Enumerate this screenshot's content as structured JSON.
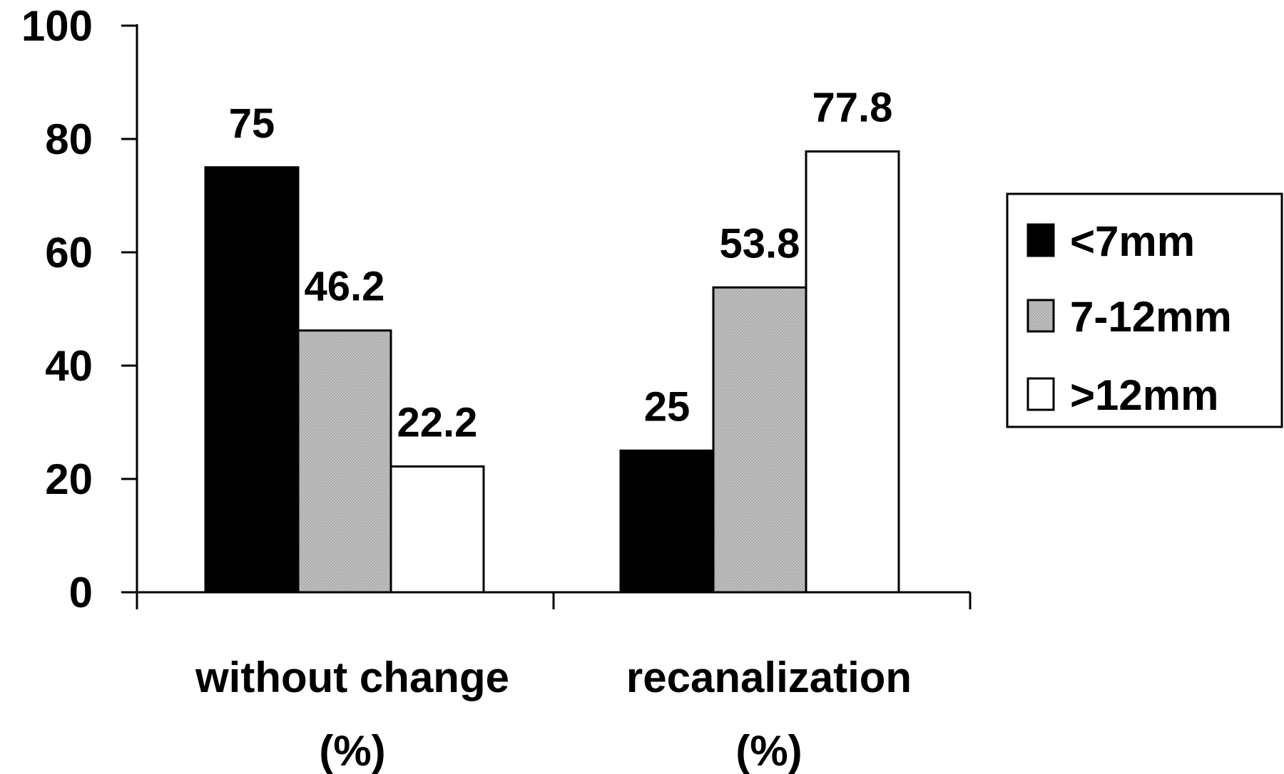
{
  "chart_data": {
    "type": "bar",
    "categories": [
      [
        "without change",
        "(%)"
      ],
      [
        "recanalization",
        "(%)"
      ]
    ],
    "series": [
      {
        "name": "<7mm",
        "values": [
          75,
          25
        ],
        "color": "#000000",
        "fill": "solid"
      },
      {
        "name": "7-12mm",
        "values": [
          46.2,
          53.8
        ],
        "color": "#b4b4b4",
        "fill": "stippled-gray"
      },
      {
        "name": ">12mm",
        "values": [
          22.2,
          77.8
        ],
        "color": "#ffffff",
        "fill": "white"
      }
    ],
    "data_labels": [
      [
        "75",
        "25"
      ],
      [
        "46.2",
        "53.8"
      ],
      [
        "22.2",
        "77.8"
      ]
    ],
    "y_ticks": [
      "0",
      "20",
      "40",
      "60",
      "80",
      "100"
    ],
    "ylim": [
      0,
      100
    ],
    "title": "",
    "xlabel": "",
    "ylabel": "",
    "grid": false,
    "legend_position": "right"
  }
}
